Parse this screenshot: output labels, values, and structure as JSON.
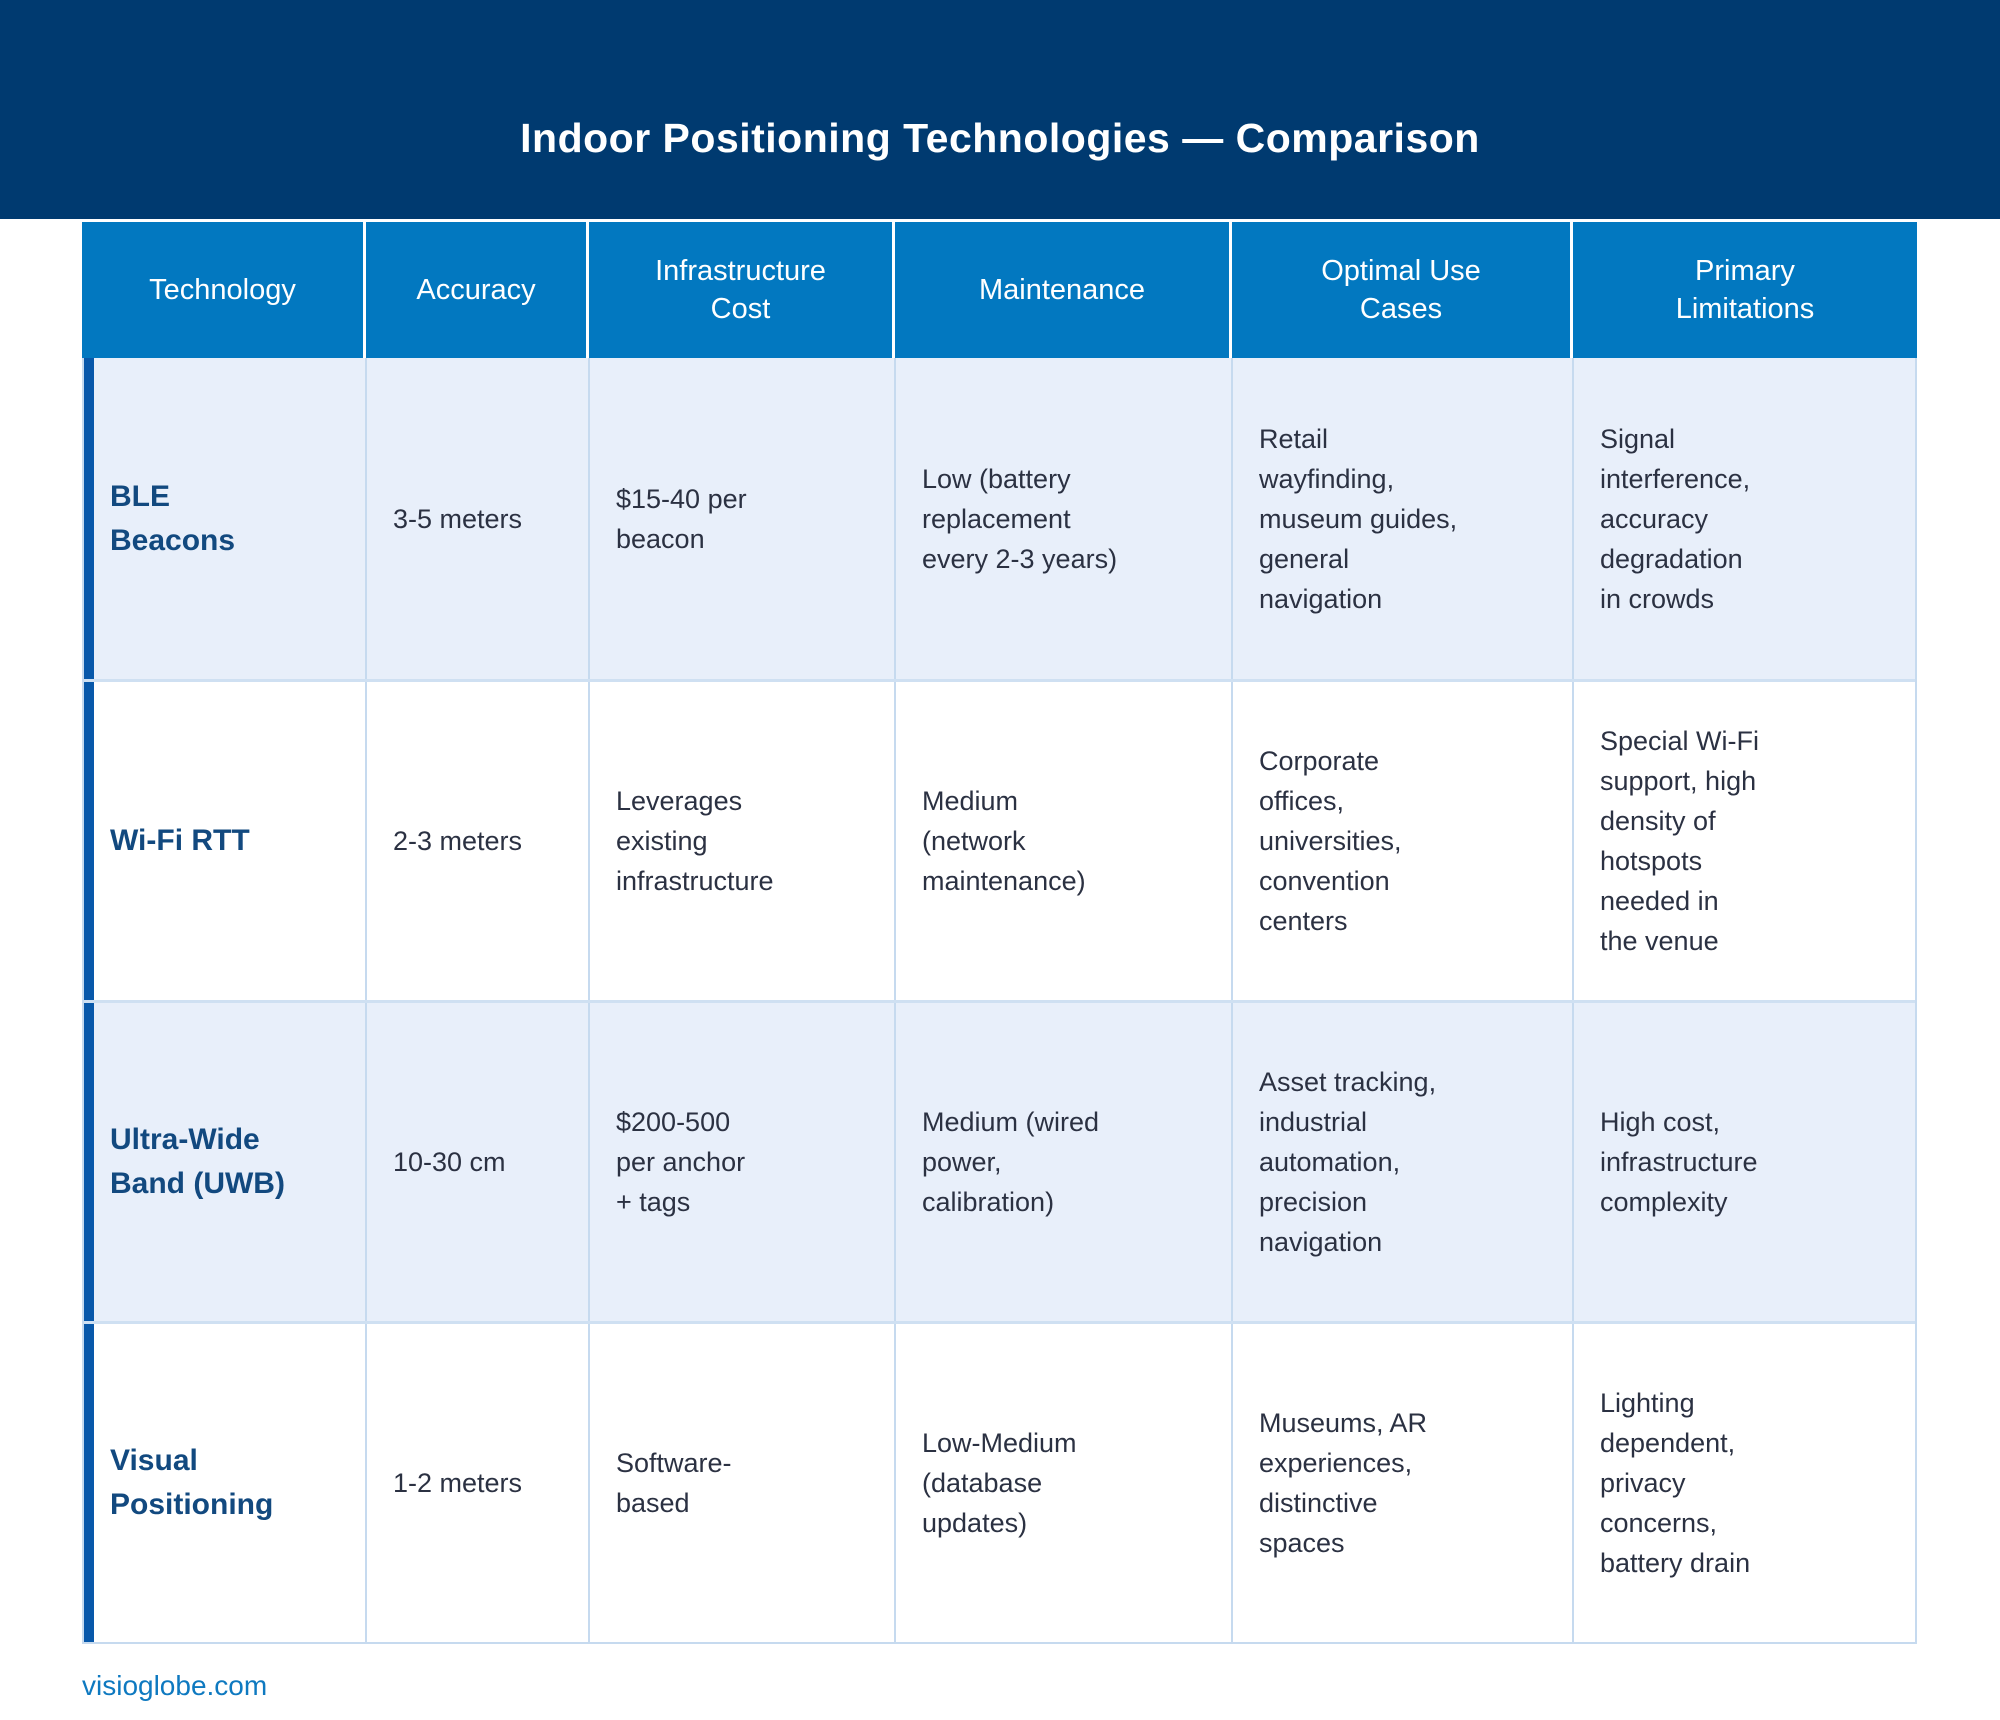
{
  "page": {
    "title": "Indoor Positioning Technologies — Comparison",
    "footer_link": "visioglobe.com"
  },
  "colors": {
    "banner_bg": "#003a70",
    "header_bg": "#0278c0",
    "row_alt_bg": "#e8effa",
    "row_bg": "#ffffff",
    "grid_line": "#c6daef",
    "left_accent_bar": "#0858aa",
    "technology_name_text": "#12497f",
    "body_text": "#2b3142",
    "header_text": "#ffffff",
    "footer_link_text": "#0e79c0"
  },
  "table": {
    "columns": {
      "technology": "Technology",
      "accuracy": "Accuracy",
      "infrastructure_cost": "Infrastructure\nCost",
      "maintenance": "Maintenance",
      "optimal_use_cases": "Optimal Use\nCases",
      "primary_limitations": "Primary\nLimitations"
    },
    "rows": [
      {
        "technology": "BLE\nBeacons",
        "accuracy": "3-5 meters",
        "infrastructure_cost": "$15-40 per\nbeacon",
        "maintenance": "Low (battery\nreplacement\nevery 2-3 years)",
        "optimal_use_cases": "Retail\nwayfinding,\nmuseum guides,\ngeneral\nnavigation",
        "primary_limitations": "Signal\ninterference,\naccuracy\ndegradation\nin crowds"
      },
      {
        "technology": "Wi-Fi RTT",
        "accuracy": "2-3 meters",
        "infrastructure_cost": "Leverages\nexisting\ninfrastructure",
        "maintenance": "Medium\n(network\nmaintenance)",
        "optimal_use_cases": "Corporate\noffices,\nuniversities,\nconvention\ncenters",
        "primary_limitations": "Special Wi-Fi\nsupport, high\ndensity of\nhotspots\nneeded in\nthe venue"
      },
      {
        "technology": "Ultra-Wide\nBand (UWB)",
        "accuracy": "10-30 cm",
        "infrastructure_cost": "$200-500\nper anchor\n+ tags",
        "maintenance": "Medium (wired\npower,\ncalibration)",
        "optimal_use_cases": "Asset tracking,\nindustrial\nautomation,\nprecision\nnavigation",
        "primary_limitations": "High cost,\ninfrastructure\ncomplexity"
      },
      {
        "technology": "Visual\nPositioning",
        "accuracy": "1-2 meters",
        "infrastructure_cost": "Software-\nbased",
        "maintenance": "Low-Medium\n(database\nupdates)",
        "optimal_use_cases": "Museums, AR\nexperiences,\ndistinctive\nspaces",
        "primary_limitations": "Lighting\ndependent,\nprivacy\nconcerns,\nbattery drain"
      }
    ]
  },
  "chart_data": {
    "type": "table",
    "title": "Indoor Positioning Technologies — Comparison",
    "columns": [
      "Technology",
      "Accuracy",
      "Infrastructure Cost",
      "Maintenance",
      "Optimal Use Cases",
      "Primary Limitations"
    ],
    "rows": [
      [
        "BLE Beacons",
        "3-5 meters",
        "$15-40 per beacon",
        "Low (battery replacement every 2-3 years)",
        "Retail wayfinding, museum guides, general navigation",
        "Signal interference, accuracy degradation in crowds"
      ],
      [
        "Wi-Fi RTT",
        "2-3 meters",
        "Leverages existing infrastructure",
        "Medium (network maintenance)",
        "Corporate offices, universities, convention centers",
        "Special Wi-Fi support, high density of hotspots needed in the venue"
      ],
      [
        "Ultra-Wide Band (UWB)",
        "10-30 cm",
        "$200-500 per anchor + tags",
        "Medium (wired power, calibration)",
        "Asset tracking, industrial automation, precision navigation",
        "High cost, infrastructure complexity"
      ],
      [
        "Visual Positioning",
        "1-2 meters",
        "Software-based",
        "Low-Medium (database updates)",
        "Museums, AR experiences, distinctive spaces",
        "Lighting dependent, privacy concerns, battery drain"
      ]
    ],
    "layout": {
      "header_position": "top",
      "row_striping": [
        "alt",
        "plain",
        "alt",
        "plain"
      ],
      "left_accent_bar": true
    }
  }
}
